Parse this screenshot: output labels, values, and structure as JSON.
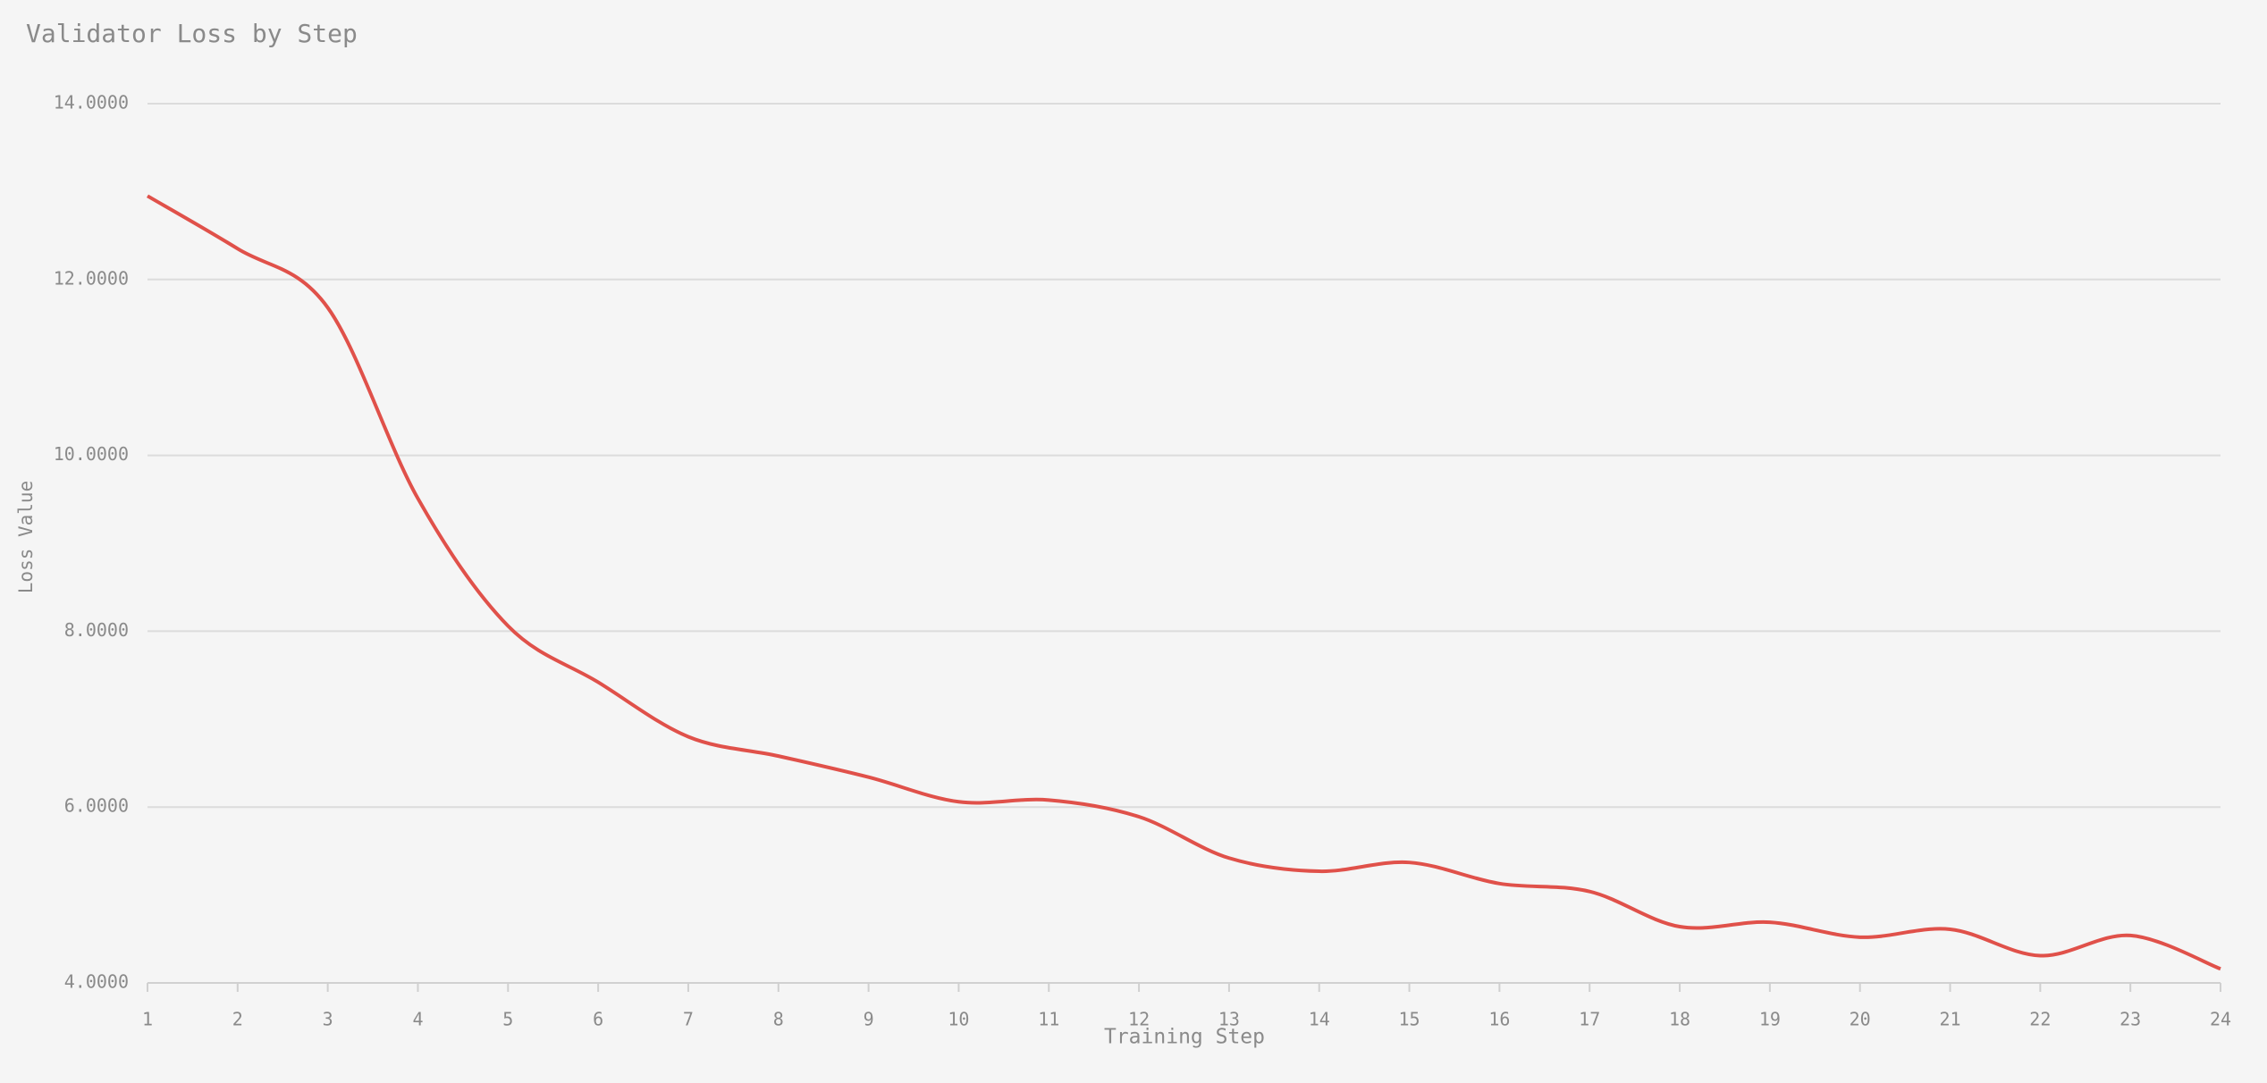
{
  "chart_data": {
    "type": "line",
    "title": "Validator Loss by Step",
    "xlabel": "Training Step",
    "ylabel": "Loss Value",
    "x": [
      1,
      2,
      3,
      4,
      5,
      6,
      7,
      8,
      9,
      10,
      11,
      12,
      13,
      14,
      15,
      16,
      17,
      18,
      19,
      20,
      21,
      22,
      23,
      24
    ],
    "series": [
      {
        "name": "Loss",
        "color": "#e0514a",
        "values": [
          12.95,
          12.35,
          11.68,
          9.51,
          8.06,
          7.42,
          6.8,
          6.58,
          6.34,
          6.06,
          6.08,
          5.89,
          5.42,
          5.27,
          5.37,
          5.13,
          5.04,
          4.64,
          4.69,
          4.52,
          4.61,
          4.31,
          4.54,
          4.16
        ]
      }
    ],
    "xlim": [
      1,
      24
    ],
    "xticks": [
      1,
      2,
      3,
      4,
      5,
      6,
      7,
      8,
      9,
      10,
      11,
      12,
      13,
      14,
      15,
      16,
      17,
      18,
      19,
      20,
      21,
      22,
      23,
      24
    ],
    "ylim": [
      4,
      14
    ],
    "yticks": [
      {
        "value": 4,
        "label": "4.0000"
      },
      {
        "value": 6,
        "label": "6.0000"
      },
      {
        "value": 8,
        "label": "8.0000"
      },
      {
        "value": 10,
        "label": "10.0000"
      },
      {
        "value": 12,
        "label": "12.0000"
      },
      {
        "value": 14,
        "label": "14.0000"
      }
    ],
    "grid": true
  }
}
